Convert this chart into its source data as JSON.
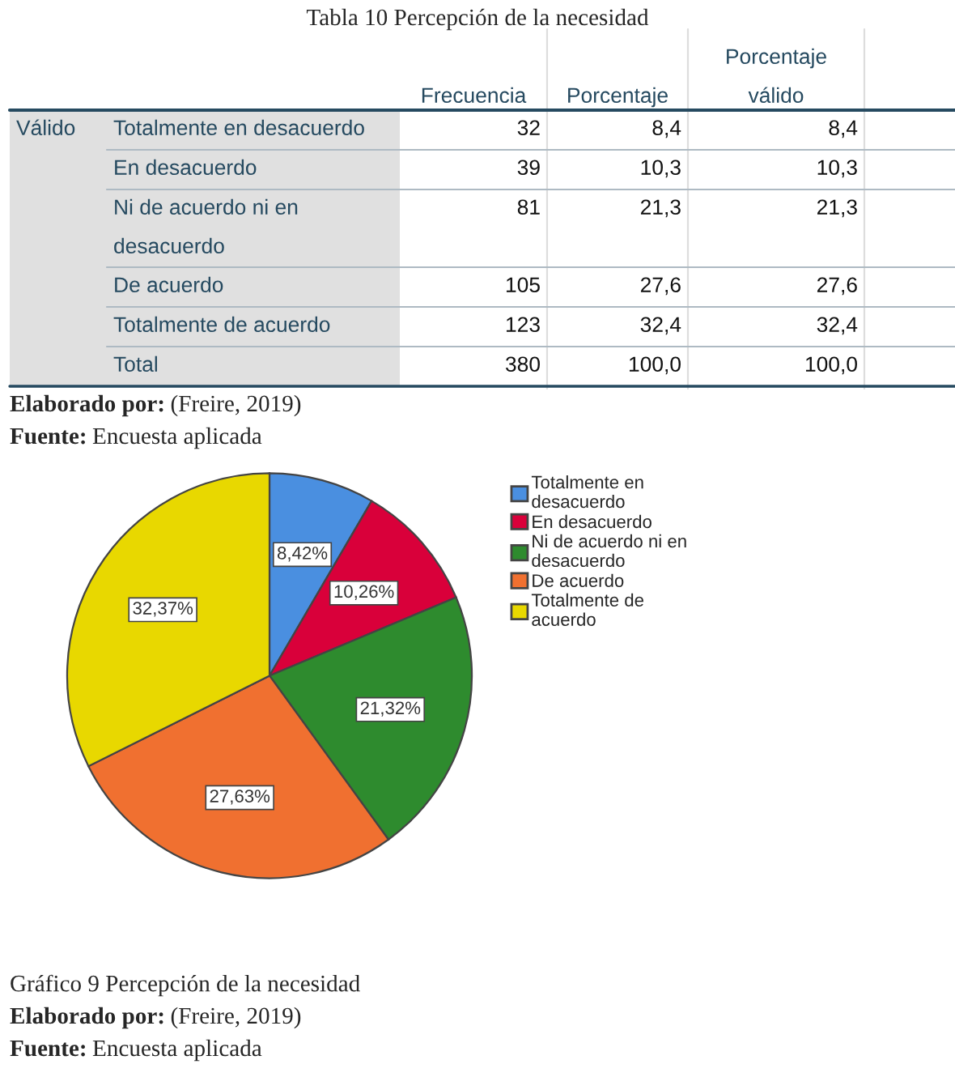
{
  "chart_data": [
    {
      "type": "other",
      "title": "Tabla 10 Percepción de la necesidad",
      "ylabel": "Válido",
      "categories": [
        "Frecuencia",
        "Porcentaje",
        "Porcentaje válido"
      ],
      "y_categories": [
        "Totalmente en desacuerdo",
        "En desacuerdo",
        "Ni de acuerdo ni en desacuerdo",
        "De acuerdo",
        "Totalmente de acuerdo",
        "Total"
      ],
      "cells": [
        [
          "32",
          "8,4",
          "8,4"
        ],
        [
          "39",
          "10,3",
          "10,3"
        ],
        [
          "81",
          "21,3",
          "21,3"
        ],
        [
          "105",
          "27,6",
          "27,6"
        ],
        [
          "123",
          "32,4",
          "32,4"
        ],
        [
          "380",
          "100,0",
          "100,0"
        ]
      ],
      "annotations": [
        "Elaborado por: (Freire, 2019)",
        "Fuente: Encuesta aplicada"
      ]
    },
    {
      "type": "pie",
      "title": "Gráfico 9 Percepción de la necesidad",
      "categories": [
        "Totalmente en desacuerdo",
        "En desacuerdo",
        "Ni de acuerdo ni en desacuerdo",
        "De acuerdo",
        "Totalmente de acuerdo"
      ],
      "values": [
        8.42,
        10.26,
        21.32,
        27.63,
        32.37
      ],
      "value_labels": [
        "8,42%",
        "10,26%",
        "21,32%",
        "27,63%",
        "32,37%"
      ],
      "colors": [
        "#4a8fe0",
        "#d9003a",
        "#2e8b2e",
        "#f07030",
        "#e8d800"
      ],
      "legend": "right",
      "annotations": [
        "Elaborado por: (Freire, 2019)",
        "Fuente: Encuesta aplicada"
      ]
    }
  ]
}
